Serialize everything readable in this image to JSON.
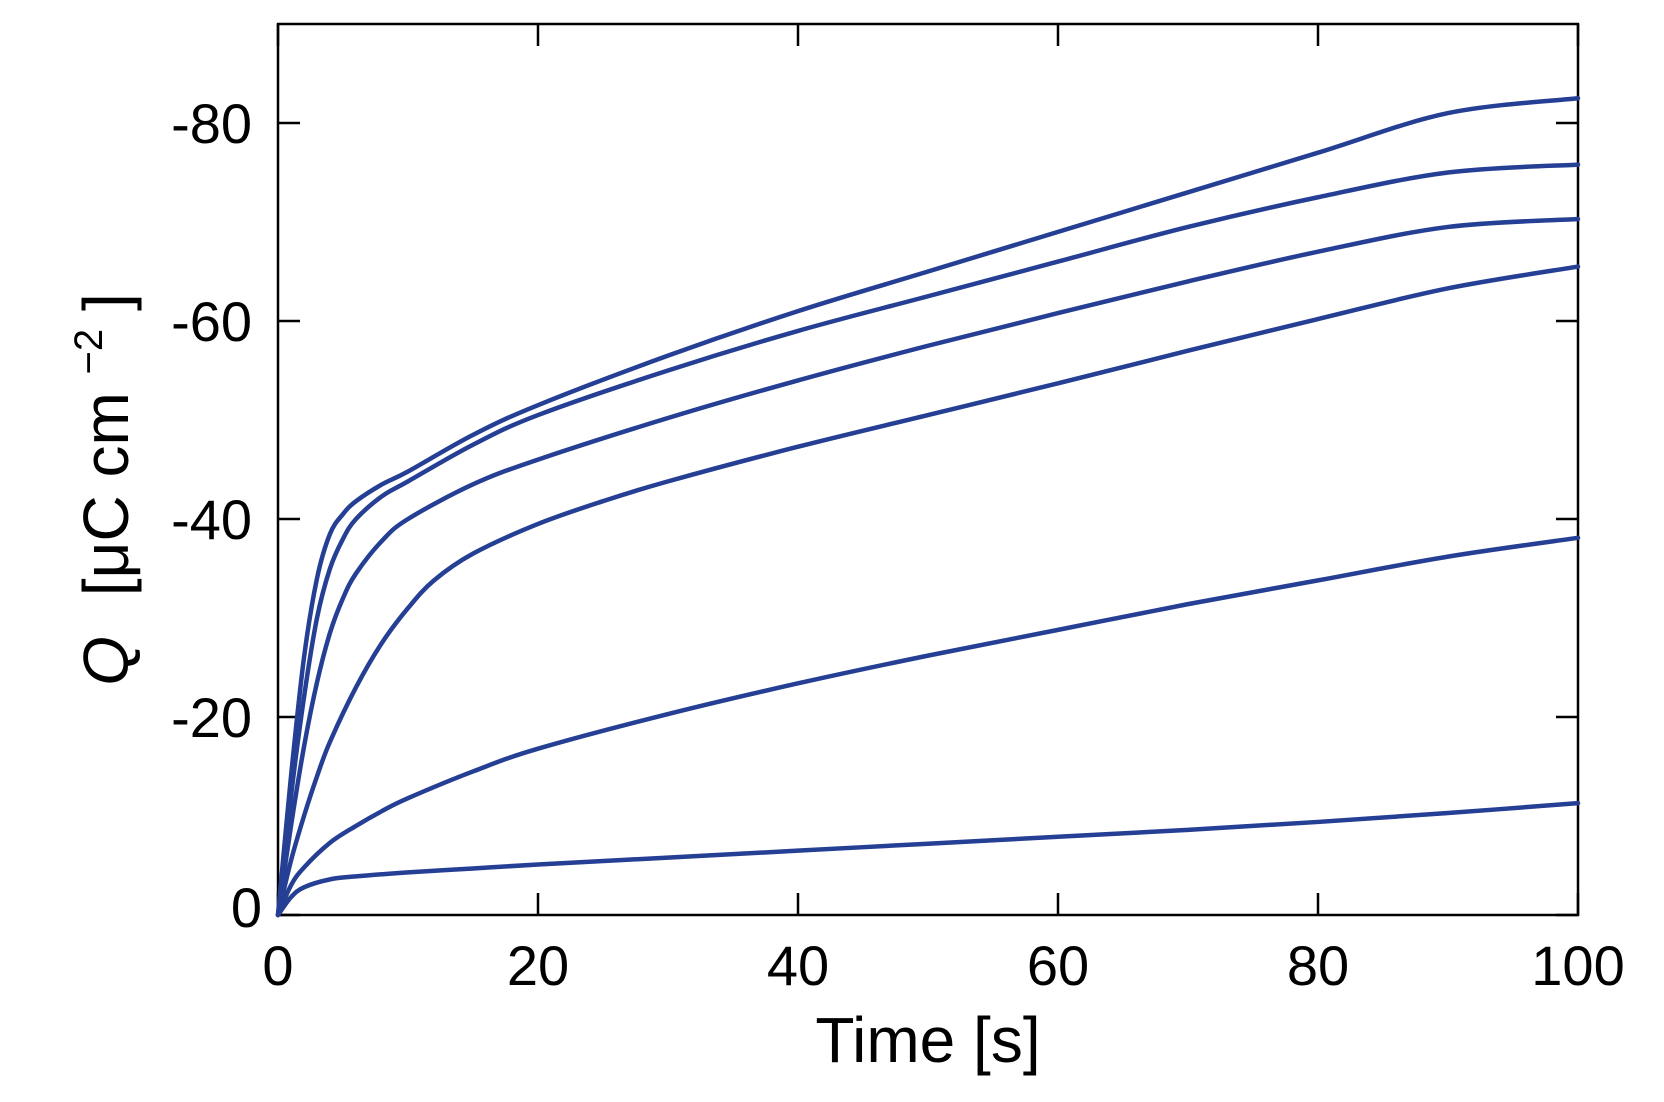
{
  "chart_data": {
    "type": "line",
    "title": "",
    "xlabel": "Time [s]",
    "ylabel": {
      "symbol": "Q",
      "unit_prefix": "[μC cm",
      "unit_exponent": "−2",
      "unit_suffix": "]"
    },
    "xlim": [
      0,
      100
    ],
    "ylim": [
      0,
      -90
    ],
    "y_axis_direction": "inverted (negative values upward)",
    "x_ticks": [
      0,
      20,
      40,
      60,
      80,
      100
    ],
    "y_ticks": [
      0,
      -20,
      -40,
      -60,
      -80
    ],
    "x_tick_labels": [
      "0",
      "20",
      "40",
      "60",
      "80",
      "100"
    ],
    "y_tick_labels": [
      "0",
      "-20",
      "-40",
      "-60",
      "-80"
    ],
    "grid": false,
    "legend": "none",
    "line_color": "#253f94",
    "series": [
      {
        "x": [
          0,
          1,
          2,
          3,
          4,
          5,
          6,
          8,
          10,
          15,
          20,
          30,
          40,
          50,
          60,
          70,
          80,
          90,
          100
        ],
        "y": [
          0,
          -14,
          -26,
          -34,
          -38.5,
          -40.5,
          -41.8,
          -43.5,
          -44.8,
          -48.5,
          -51.5,
          -56.5,
          -61,
          -65,
          -69,
          -73,
          -77,
          -81,
          -82.5
        ]
      },
      {
        "x": [
          0,
          1,
          2,
          3,
          4,
          5,
          6,
          8,
          10,
          15,
          20,
          30,
          40,
          50,
          60,
          70,
          80,
          90,
          100
        ],
        "y": [
          0,
          -12,
          -22,
          -30,
          -35,
          -38,
          -40,
          -42.3,
          -43.8,
          -47.5,
          -50.5,
          -55,
          -59,
          -62.5,
          -66,
          -69.5,
          -72.5,
          -75,
          -75.8
        ]
      },
      {
        "x": [
          0,
          1,
          2,
          3,
          4,
          5,
          6,
          8,
          10,
          15,
          20,
          30,
          40,
          50,
          60,
          70,
          80,
          90,
          100
        ],
        "y": [
          0,
          -9,
          -17,
          -23.5,
          -28.5,
          -32,
          -34.5,
          -37.8,
          -40,
          -43.5,
          -46,
          -50.2,
          -54,
          -57.5,
          -60.8,
          -64,
          -67,
          -69.5,
          -70.3
        ]
      },
      {
        "x": [
          0,
          1,
          2,
          3,
          4,
          6,
          8,
          10,
          12,
          15,
          20,
          25,
          30,
          40,
          50,
          60,
          70,
          80,
          90,
          100
        ],
        "y": [
          0,
          -5.5,
          -10,
          -14,
          -17.5,
          -23,
          -27.5,
          -31,
          -33.8,
          -36.5,
          -39.5,
          -41.8,
          -43.8,
          -47.3,
          -50.5,
          -53.7,
          -57,
          -60.2,
          -63.3,
          -65.5
        ]
      },
      {
        "x": [
          0,
          1,
          2,
          4,
          6,
          8,
          10,
          15,
          20,
          30,
          40,
          50,
          60,
          70,
          80,
          90,
          100
        ],
        "y": [
          0,
          -3,
          -4.8,
          -7.3,
          -9,
          -10.5,
          -11.8,
          -14.5,
          -16.8,
          -20.3,
          -23.4,
          -26.2,
          -28.8,
          -31.4,
          -33.8,
          -36.2,
          -38.1
        ]
      },
      {
        "x": [
          0,
          1,
          2,
          4,
          6,
          10,
          15,
          20,
          30,
          40,
          50,
          60,
          70,
          80,
          90,
          100
        ],
        "y": [
          0,
          -1.8,
          -2.8,
          -3.6,
          -3.9,
          -4.3,
          -4.7,
          -5.1,
          -5.8,
          -6.5,
          -7.2,
          -7.9,
          -8.6,
          -9.4,
          -10.3,
          -11.3
        ]
      }
    ]
  }
}
